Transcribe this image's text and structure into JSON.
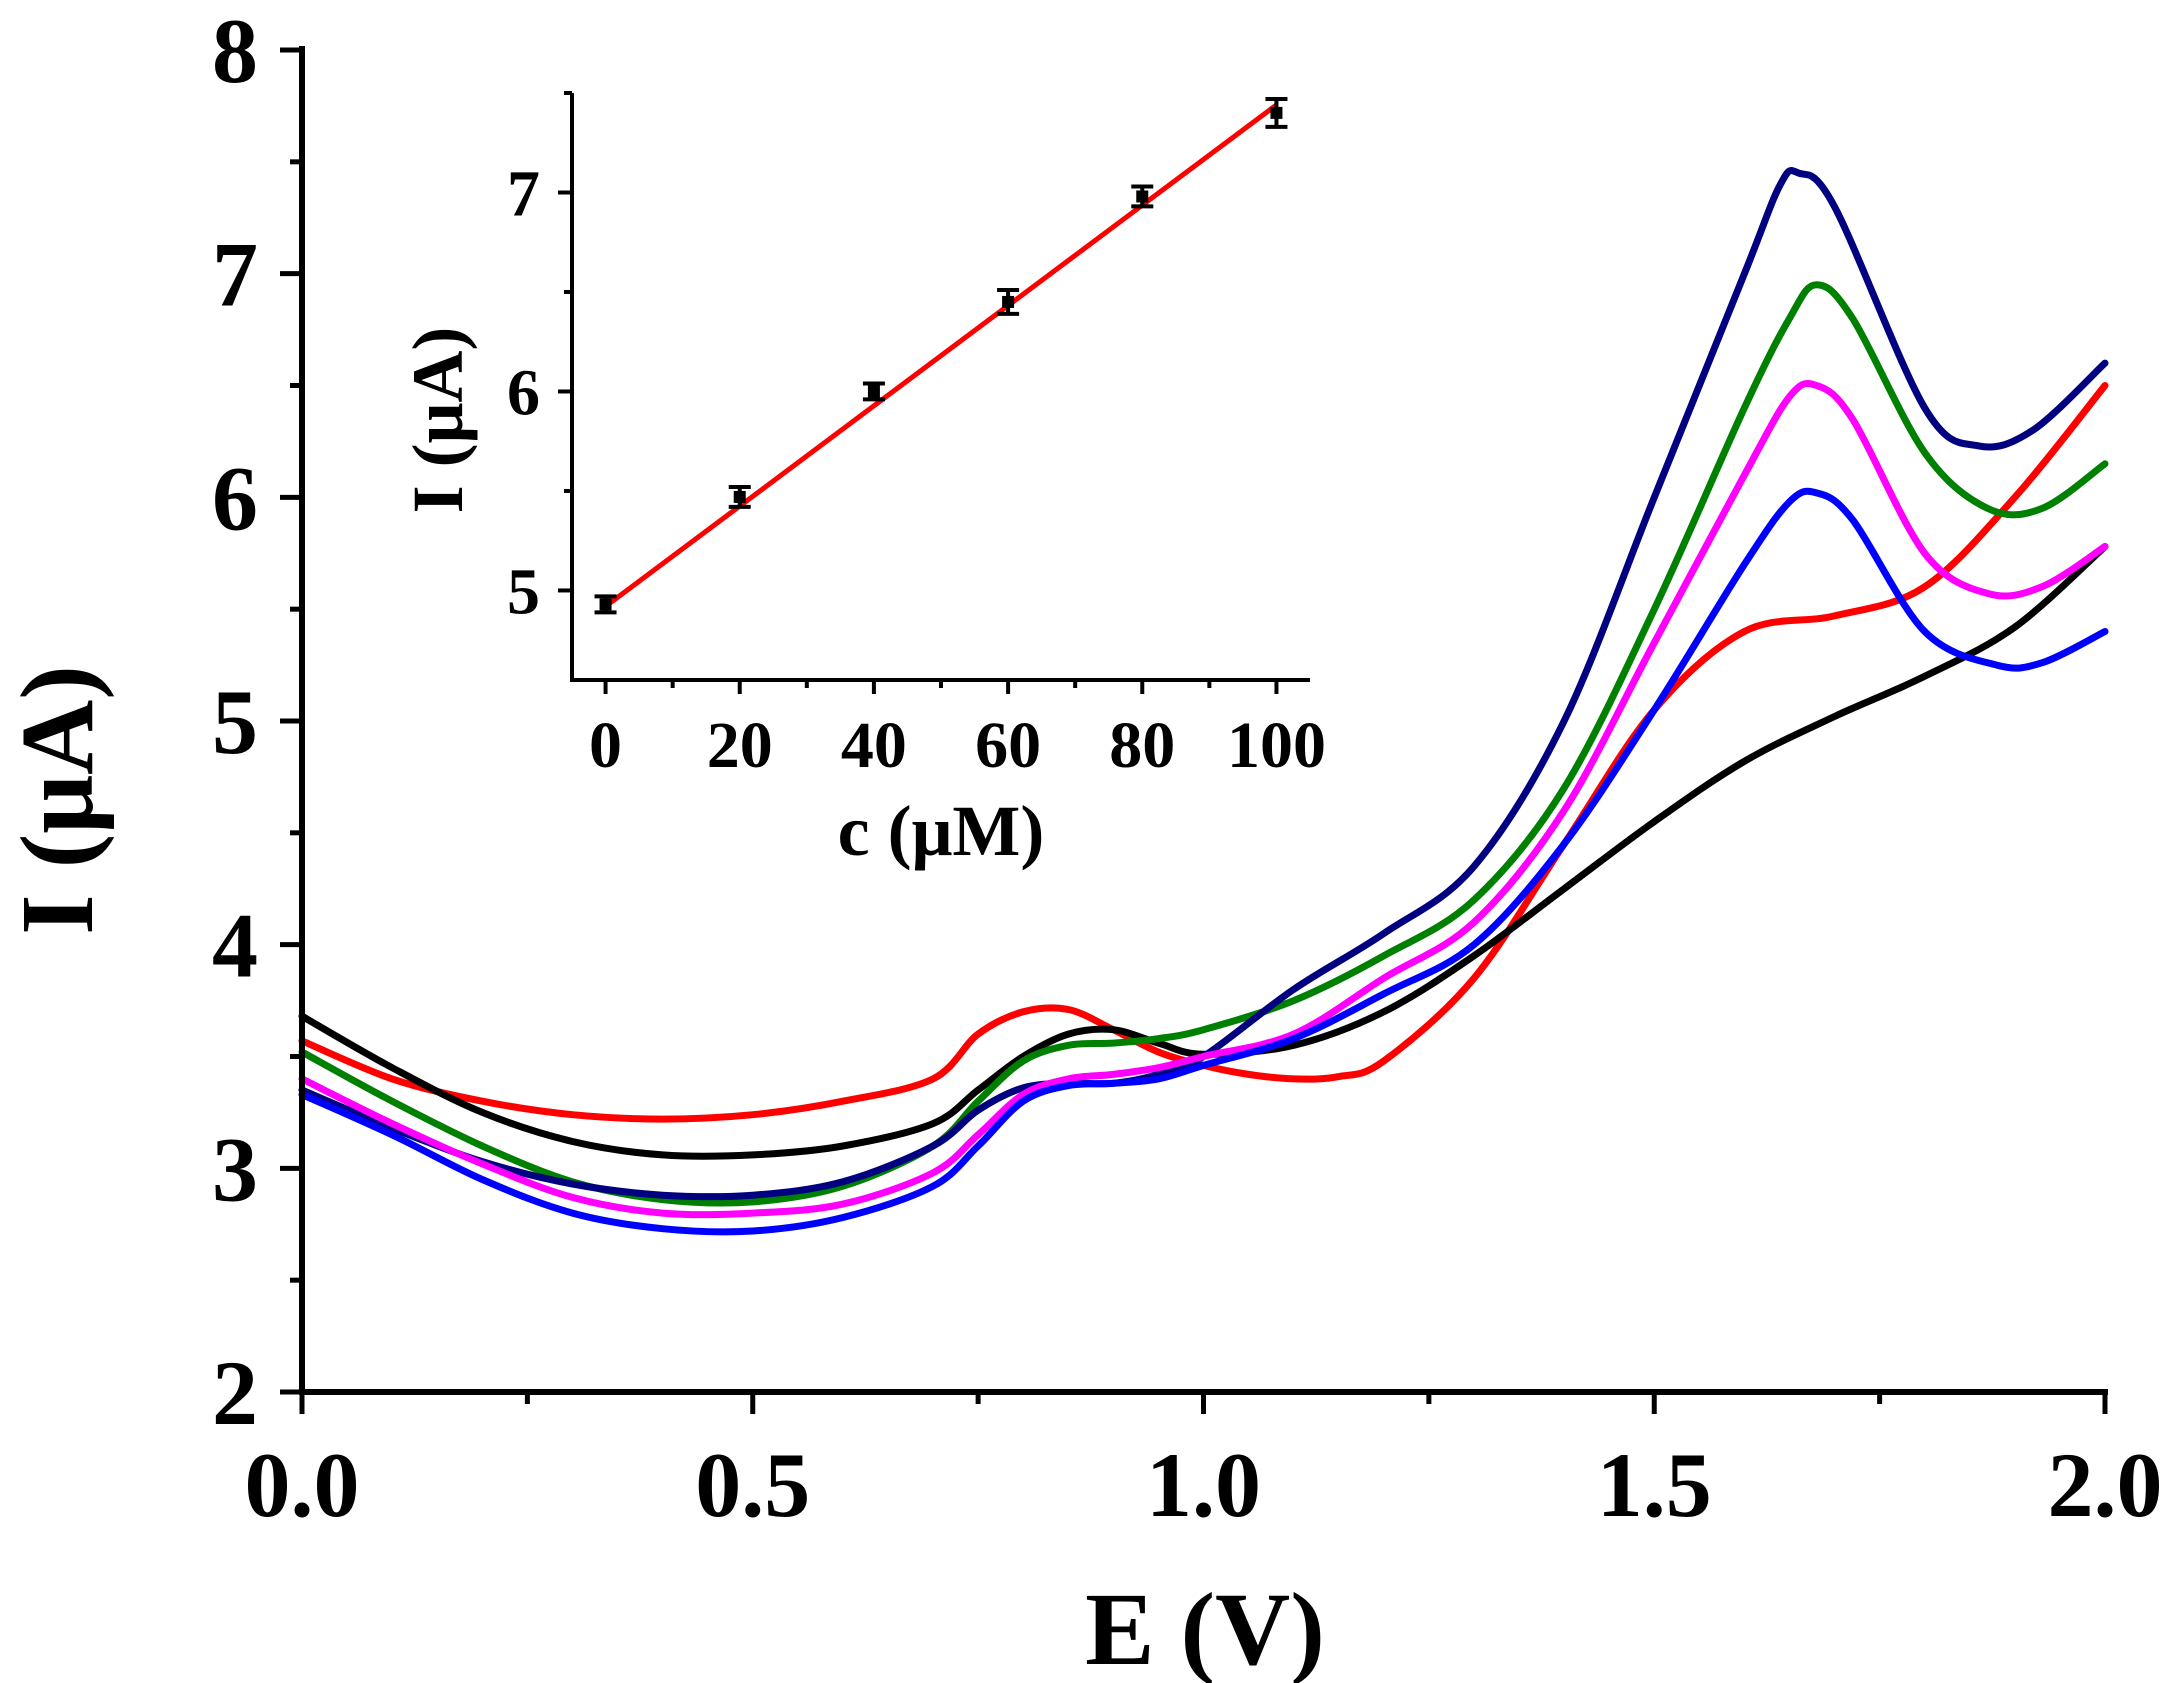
{
  "chart_data": [
    {
      "type": "line",
      "role": "main",
      "title": "",
      "xlabel": "E (V)",
      "ylabel": "I (μA)",
      "xlim": [
        0.0,
        2.0
      ],
      "ylim": [
        2,
        8
      ],
      "xticks": [
        "0.0",
        "0.5",
        "1.0",
        "1.5",
        "2.0"
      ],
      "yticks": [
        "2",
        "3",
        "4",
        "5",
        "6",
        "7",
        "8"
      ],
      "grid": false,
      "legend": "none",
      "series": [
        {
          "name": "red",
          "color": "#ff0000",
          "x": [
            0.0,
            0.1,
            0.2,
            0.3,
            0.4,
            0.5,
            0.6,
            0.7,
            0.75,
            0.8,
            0.85,
            0.9,
            0.95,
            1.0,
            1.05,
            1.1,
            1.15,
            1.2,
            1.3,
            1.4,
            1.5,
            1.6,
            1.7,
            1.8,
            1.9,
            2.0
          ],
          "y": [
            3.57,
            3.4,
            3.3,
            3.24,
            3.22,
            3.24,
            3.3,
            3.4,
            3.6,
            3.7,
            3.71,
            3.62,
            3.52,
            3.46,
            3.42,
            3.4,
            3.41,
            3.48,
            3.85,
            4.45,
            5.05,
            5.4,
            5.47,
            5.6,
            6.0,
            6.5
          ]
        },
        {
          "name": "black",
          "color": "#000000",
          "x": [
            0.0,
            0.1,
            0.2,
            0.3,
            0.4,
            0.5,
            0.6,
            0.7,
            0.75,
            0.8,
            0.85,
            0.9,
            0.95,
            1.0,
            1.1,
            1.2,
            1.3,
            1.4,
            1.5,
            1.6,
            1.7,
            1.8,
            1.9,
            2.0
          ],
          "y": [
            3.68,
            3.45,
            3.25,
            3.12,
            3.06,
            3.06,
            3.1,
            3.2,
            3.35,
            3.5,
            3.6,
            3.62,
            3.56,
            3.51,
            3.55,
            3.7,
            3.95,
            4.25,
            4.55,
            4.82,
            5.02,
            5.2,
            5.42,
            5.78
          ]
        },
        {
          "name": "green",
          "color": "#008000",
          "x": [
            0.0,
            0.1,
            0.2,
            0.3,
            0.4,
            0.5,
            0.6,
            0.7,
            0.75,
            0.8,
            0.85,
            0.9,
            0.95,
            1.0,
            1.1,
            1.2,
            1.3,
            1.4,
            1.5,
            1.6,
            1.65,
            1.68,
            1.72,
            1.8,
            1.87,
            1.93,
            2.0
          ],
          "y": [
            3.52,
            3.3,
            3.1,
            2.94,
            2.86,
            2.85,
            2.92,
            3.1,
            3.3,
            3.48,
            3.55,
            3.56,
            3.58,
            3.62,
            3.75,
            3.95,
            4.2,
            4.7,
            5.5,
            6.4,
            6.8,
            6.95,
            6.8,
            6.2,
            5.95,
            5.95,
            6.15
          ]
        },
        {
          "name": "navy",
          "color": "#000080",
          "x": [
            0.0,
            0.1,
            0.2,
            0.3,
            0.4,
            0.5,
            0.6,
            0.7,
            0.75,
            0.8,
            0.85,
            0.9,
            0.95,
            1.0,
            1.1,
            1.2,
            1.3,
            1.4,
            1.5,
            1.6,
            1.64,
            1.66,
            1.7,
            1.8,
            1.86,
            1.92,
            2.0
          ],
          "y": [
            3.35,
            3.18,
            3.03,
            2.93,
            2.88,
            2.88,
            2.94,
            3.1,
            3.26,
            3.36,
            3.38,
            3.38,
            3.42,
            3.5,
            3.8,
            4.05,
            4.35,
            5.0,
            6.0,
            7.0,
            7.4,
            7.45,
            7.3,
            6.4,
            6.23,
            6.3,
            6.6
          ]
        },
        {
          "name": "magenta",
          "color": "#ff00ff",
          "x": [
            0.0,
            0.1,
            0.2,
            0.3,
            0.4,
            0.5,
            0.6,
            0.7,
            0.75,
            0.8,
            0.85,
            0.9,
            0.95,
            1.0,
            1.1,
            1.2,
            1.3,
            1.4,
            1.5,
            1.6,
            1.65,
            1.68,
            1.72,
            1.8,
            1.87,
            1.93,
            2.0
          ],
          "y": [
            3.4,
            3.2,
            3.02,
            2.87,
            2.8,
            2.8,
            2.84,
            2.98,
            3.15,
            3.33,
            3.4,
            3.42,
            3.45,
            3.5,
            3.6,
            3.85,
            4.1,
            4.6,
            5.35,
            6.1,
            6.45,
            6.5,
            6.35,
            5.75,
            5.57,
            5.6,
            5.78
          ]
        },
        {
          "name": "blue",
          "color": "#0000ff",
          "x": [
            0.0,
            0.1,
            0.2,
            0.3,
            0.4,
            0.5,
            0.6,
            0.7,
            0.75,
            0.8,
            0.85,
            0.9,
            0.95,
            1.0,
            1.1,
            1.2,
            1.3,
            1.4,
            1.5,
            1.6,
            1.65,
            1.68,
            1.72,
            1.8,
            1.88,
            1.93,
            2.0
          ],
          "y": [
            3.33,
            3.15,
            2.95,
            2.8,
            2.73,
            2.72,
            2.78,
            2.92,
            3.1,
            3.3,
            3.37,
            3.38,
            3.4,
            3.46,
            3.58,
            3.78,
            4.0,
            4.45,
            5.05,
            5.7,
            5.98,
            6.02,
            5.9,
            5.4,
            5.25,
            5.26,
            5.4
          ]
        }
      ]
    },
    {
      "type": "scatter",
      "role": "inset",
      "title": "",
      "xlabel": "c (μM)",
      "ylabel": "I (μA)",
      "xlim": [
        -5,
        105
      ],
      "ylim": [
        4.55,
        7.5
      ],
      "xticks": [
        "0",
        "20",
        "40",
        "60",
        "80",
        "100"
      ],
      "yticks": [
        "5",
        "6",
        "7"
      ],
      "grid": false,
      "legend": "none",
      "points": {
        "x": [
          0,
          20,
          40,
          60,
          80,
          100
        ],
        "y": [
          4.93,
          5.47,
          6.0,
          6.45,
          6.98,
          7.4
        ],
        "err": [
          0.04,
          0.05,
          0.04,
          0.06,
          0.05,
          0.07
        ]
      },
      "fit": {
        "color": "#ff0000",
        "x": [
          0,
          100
        ],
        "y": [
          4.92,
          7.44
        ]
      }
    }
  ]
}
